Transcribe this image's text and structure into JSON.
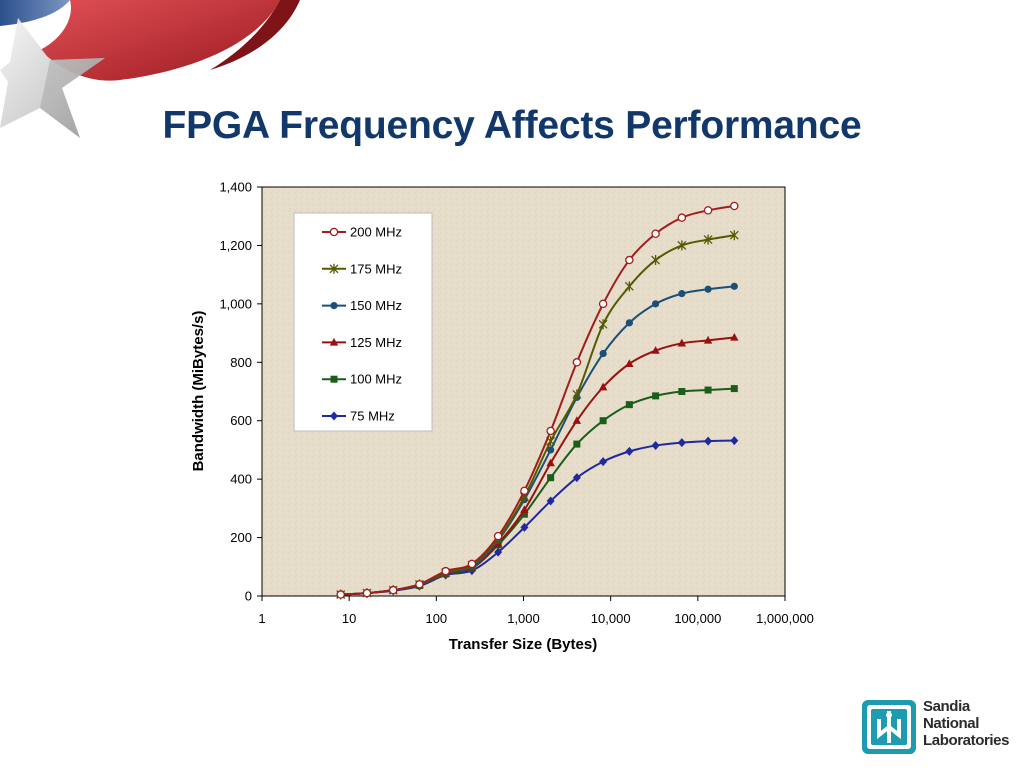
{
  "slide": {
    "title": "FPGA Frequency Affects Performance"
  },
  "logo": {
    "lines": [
      "Sandia",
      "National",
      "Laboratories"
    ]
  },
  "colors": {
    "title": "#12386b",
    "plot_background": "#e6ddcb",
    "star_ribbon_red": "#c0282d",
    "star_ribbon_blue": "#2c4f8c"
  },
  "chart_data": {
    "type": "line",
    "x_scale": "log",
    "xlabel": "Transfer Size (Bytes)",
    "ylabel": "Bandwidth (MiBytes/s)",
    "xlim": [
      1,
      1000000
    ],
    "ylim": [
      0,
      1400
    ],
    "x_ticks": [
      1,
      10,
      100,
      1000,
      10000,
      100000,
      1000000
    ],
    "x_tick_labels": [
      "1",
      "10",
      "100",
      "1,000",
      "10,000",
      "100,000",
      "1,000,000"
    ],
    "y_ticks": [
      0,
      200,
      400,
      600,
      800,
      1000,
      1200,
      1400
    ],
    "y_tick_labels": [
      "0",
      "200",
      "400",
      "600",
      "800",
      "1,000",
      "1,200",
      "1,400"
    ],
    "grid": false,
    "legend_position": "upper-left inside plot",
    "x": [
      8,
      16,
      32,
      64,
      128,
      256,
      512,
      1024,
      2048,
      4096,
      8192,
      16384,
      32768,
      65536,
      131072,
      262144
    ],
    "series": [
      {
        "name": "200 MHz",
        "color": "#a01e1e",
        "marker": "open-circle",
        "values": [
          5,
          10,
          20,
          40,
          85,
          110,
          205,
          360,
          565,
          800,
          1000,
          1150,
          1240,
          1295,
          1320,
          1335
        ]
      },
      {
        "name": "175 MHz",
        "color": "#555a00",
        "marker": "star",
        "values": [
          5,
          10,
          20,
          40,
          80,
          105,
          195,
          340,
          530,
          690,
          930,
          1060,
          1150,
          1200,
          1220,
          1235
        ]
      },
      {
        "name": "150 MHz",
        "color": "#1c4f78",
        "marker": "circle",
        "values": [
          5,
          10,
          20,
          38,
          80,
          100,
          190,
          330,
          500,
          680,
          830,
          935,
          1000,
          1035,
          1050,
          1060
        ]
      },
      {
        "name": "125 MHz",
        "color": "#9a1010",
        "marker": "triangle",
        "values": [
          5,
          10,
          20,
          38,
          78,
          98,
          180,
          295,
          455,
          600,
          715,
          795,
          840,
          865,
          875,
          885
        ]
      },
      {
        "name": "100 MHz",
        "color": "#1a5e1a",
        "marker": "square",
        "values": [
          5,
          10,
          20,
          36,
          76,
          95,
          175,
          280,
          405,
          520,
          600,
          655,
          685,
          700,
          705,
          710
        ]
      },
      {
        "name": "75 MHz",
        "color": "#1f2a9c",
        "marker": "diamond",
        "values": [
          5,
          10,
          18,
          34,
          72,
          87,
          150,
          235,
          325,
          405,
          460,
          495,
          515,
          525,
          530,
          532
        ]
      }
    ]
  }
}
